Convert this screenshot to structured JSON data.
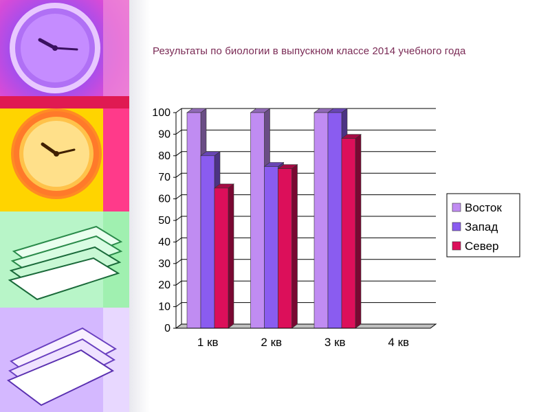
{
  "slide": {
    "title": "Результаты по биологии в выпускном классе 2014 учебного года"
  },
  "colors": {
    "vostok": "#c08cf2",
    "zapad": "#8a5cf0",
    "sever": "#dc0f5a",
    "grid": "#000000"
  },
  "decor": {
    "icons": [
      "clock-purple-icon",
      "clock-orange-icon",
      "books-green-icon",
      "books-violet-icon"
    ]
  },
  "chart_data": {
    "type": "bar",
    "title": "",
    "xlabel": "",
    "ylabel": "",
    "ylim": [
      0,
      100
    ],
    "yticks": [
      "0",
      "10",
      "20",
      "30",
      "40",
      "50",
      "60",
      "70",
      "80",
      "90",
      "100"
    ],
    "categories": [
      "1 кв",
      "2 кв",
      "3 кв",
      "4 кв"
    ],
    "series": [
      {
        "name": "Восток",
        "values": [
          100,
          100,
          100,
          0
        ],
        "color": "#c08cf2"
      },
      {
        "name": "Запад",
        "values": [
          80,
          75,
          100,
          0
        ],
        "color": "#8a5cf0"
      },
      {
        "name": "Север",
        "values": [
          65,
          74,
          88,
          0
        ],
        "color": "#dc0f5a"
      }
    ],
    "grid": true,
    "legend": "right"
  }
}
